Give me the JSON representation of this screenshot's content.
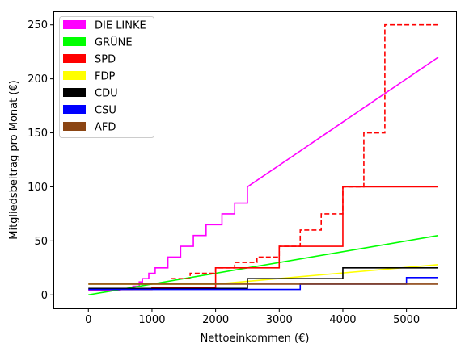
{
  "chart_data": {
    "type": "line",
    "title": "",
    "xlabel": "Nettoeinkommen (€)",
    "ylabel": "Mitgliedsbeitrag pro Monat (€)",
    "xlim": [
      -550,
      5780
    ],
    "ylim": [
      -12.5,
      262.5
    ],
    "xticks": [
      0,
      1000,
      2000,
      3000,
      4000,
      5000
    ],
    "yticks": [
      0,
      50,
      100,
      150,
      200,
      250
    ],
    "grid": false,
    "legend_position": "top-left",
    "series": [
      {
        "name": "DIE LINKE",
        "color": "#ff00ff",
        "dashed": false,
        "points": [
          [
            0,
            4
          ],
          [
            500,
            4
          ],
          [
            500,
            5
          ],
          [
            700,
            5
          ],
          [
            700,
            8
          ],
          [
            800,
            8
          ],
          [
            800,
            12
          ],
          [
            850,
            12
          ],
          [
            850,
            15
          ],
          [
            950,
            15
          ],
          [
            950,
            20
          ],
          [
            1050,
            20
          ],
          [
            1050,
            25
          ],
          [
            1250,
            25
          ],
          [
            1250,
            35
          ],
          [
            1450,
            35
          ],
          [
            1450,
            45
          ],
          [
            1650,
            45
          ],
          [
            1650,
            55
          ],
          [
            1850,
            55
          ],
          [
            1850,
            65
          ],
          [
            2100,
            65
          ],
          [
            2100,
            75
          ],
          [
            2300,
            75
          ],
          [
            2300,
            85
          ],
          [
            2500,
            85
          ],
          [
            2500,
            100
          ],
          [
            5500,
            220
          ]
        ]
      },
      {
        "name": "GRÜNE",
        "color": "#00ff00",
        "dashed": false,
        "points": [
          [
            0,
            0
          ],
          [
            5500,
            55
          ]
        ]
      },
      {
        "name": "SPD",
        "color": "#ff0000",
        "dashed": false,
        "points": [
          [
            0,
            5
          ],
          [
            1000,
            5
          ],
          [
            1000,
            7
          ],
          [
            2000,
            7
          ],
          [
            2000,
            25
          ],
          [
            3000,
            25
          ],
          [
            3000,
            45
          ],
          [
            4000,
            45
          ],
          [
            4000,
            100
          ],
          [
            5500,
            100
          ]
        ]
      },
      {
        "name": "",
        "color": "#ff0000",
        "dashed": true,
        "points": [
          [
            1300,
            15
          ],
          [
            1600,
            15
          ],
          [
            1600,
            20
          ],
          [
            2000,
            20
          ],
          [
            2000,
            25
          ],
          [
            2300,
            25
          ],
          [
            2300,
            30
          ],
          [
            2650,
            30
          ],
          [
            2650,
            35
          ],
          [
            3000,
            35
          ],
          [
            3000,
            45
          ],
          [
            3330,
            45
          ],
          [
            3330,
            60
          ],
          [
            3660,
            60
          ],
          [
            3660,
            75
          ],
          [
            4000,
            75
          ],
          [
            4000,
            100
          ],
          [
            4330,
            100
          ],
          [
            4330,
            150
          ],
          [
            4660,
            150
          ],
          [
            4660,
            250
          ],
          [
            5500,
            250
          ]
        ]
      },
      {
        "name": "FDP",
        "color": "#ffff00",
        "dashed": false,
        "points": [
          [
            0,
            10
          ],
          [
            2000,
            10
          ],
          [
            5500,
            28
          ]
        ]
      },
      {
        "name": "CDU",
        "color": "#000000",
        "dashed": false,
        "points": [
          [
            0,
            6
          ],
          [
            2500,
            6
          ],
          [
            2500,
            15
          ],
          [
            4000,
            15
          ],
          [
            4000,
            25
          ],
          [
            5500,
            25
          ]
        ]
      },
      {
        "name": "CSU",
        "color": "#0000ff",
        "dashed": false,
        "points": [
          [
            0,
            5
          ],
          [
            3330,
            5
          ],
          [
            3330,
            10
          ],
          [
            5000,
            10
          ],
          [
            5000,
            16
          ],
          [
            5500,
            16
          ]
        ]
      },
      {
        "name": "AFD",
        "color": "#8b4513",
        "dashed": false,
        "points": [
          [
            0,
            10
          ],
          [
            5500,
            10
          ]
        ]
      }
    ],
    "legend": [
      "DIE LINKE",
      "GRÜNE",
      "SPD",
      "FDP",
      "CDU",
      "CSU",
      "AFD"
    ]
  }
}
